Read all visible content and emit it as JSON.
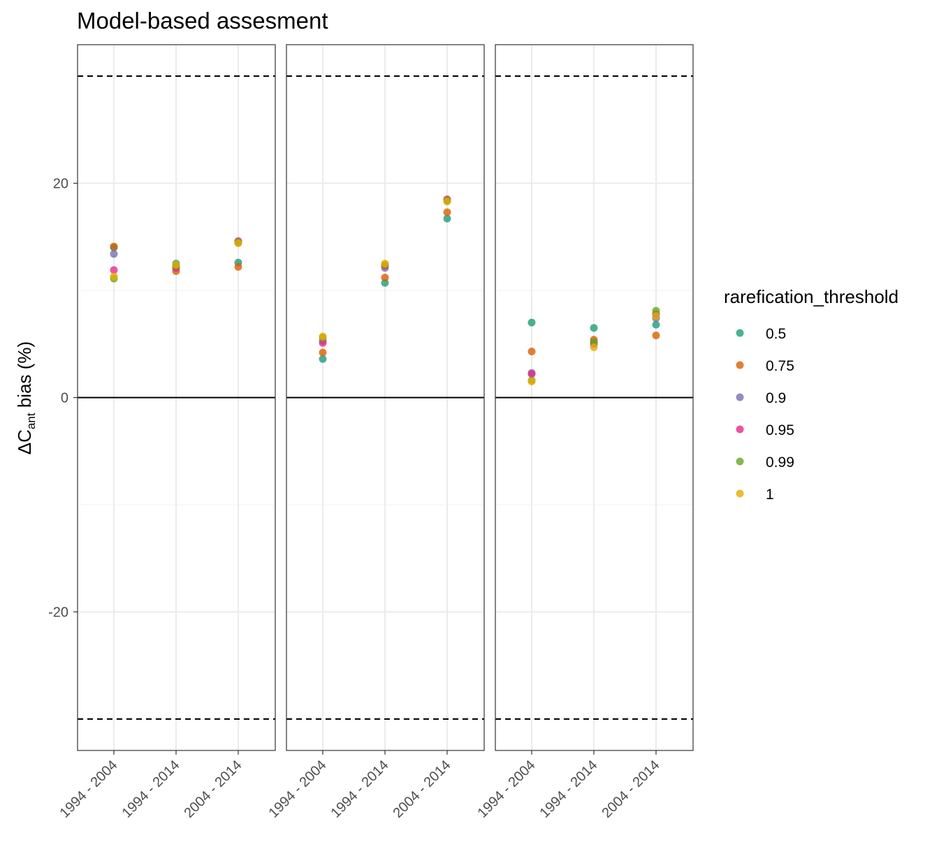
{
  "chart_data": {
    "type": "scatter",
    "title": "Model-based assesment",
    "ylabel": {
      "prefix": "ΔC",
      "subscript": "ant",
      "suffix": " bias (%)"
    },
    "ylim": [
      -33,
      33
    ],
    "yticks": [
      -20,
      0,
      20
    ],
    "categories": [
      "1994 - 2004",
      "1994 - 2014",
      "2004 - 2014"
    ],
    "reference_lines": [
      {
        "y": 0,
        "style": "solid"
      },
      {
        "y": 30,
        "style": "dashed"
      },
      {
        "y": -30,
        "style": "dashed"
      }
    ],
    "grid": true,
    "legend": {
      "title": "rarefication_threshold",
      "placement": "right",
      "entries": [
        {
          "label": "0.5",
          "color": "#1b9e77"
        },
        {
          "label": "0.75",
          "color": "#d95f02"
        },
        {
          "label": "0.9",
          "color": "#7570b3"
        },
        {
          "label": "0.95",
          "color": "#e7298a"
        },
        {
          "label": "0.99",
          "color": "#66a61e"
        },
        {
          "label": "1",
          "color": "#e6ab02"
        }
      ]
    },
    "panels": [
      {
        "series": [
          {
            "name": "0.5",
            "values": [
              14.0,
              12.5,
              12.6
            ]
          },
          {
            "name": "0.75",
            "values": [
              14.1,
              11.8,
              12.2
            ]
          },
          {
            "name": "0.9",
            "values": [
              13.4,
              12.2,
              14.5
            ]
          },
          {
            "name": "0.95",
            "values": [
              11.9,
              12.1,
              14.6
            ]
          },
          {
            "name": "0.99",
            "values": [
              11.1,
              12.3,
              14.5
            ]
          },
          {
            "name": "1",
            "values": [
              11.3,
              12.4,
              14.4
            ]
          }
        ]
      },
      {
        "series": [
          {
            "name": "0.5",
            "values": [
              3.6,
              10.7,
              16.7
            ]
          },
          {
            "name": "0.75",
            "values": [
              4.2,
              11.2,
              17.3
            ]
          },
          {
            "name": "0.9",
            "values": [
              5.3,
              12.1,
              18.4
            ]
          },
          {
            "name": "0.95",
            "values": [
              5.1,
              12.3,
              18.5
            ]
          },
          {
            "name": "0.99",
            "values": [
              5.6,
              12.4,
              18.4
            ]
          },
          {
            "name": "1",
            "values": [
              5.7,
              12.5,
              18.3
            ]
          }
        ]
      },
      {
        "series": [
          {
            "name": "0.5",
            "values": [
              7.0,
              6.5,
              6.8
            ]
          },
          {
            "name": "0.75",
            "values": [
              4.3,
              5.4,
              5.8
            ]
          },
          {
            "name": "0.9",
            "values": [
              2.3,
              5.0,
              7.4
            ]
          },
          {
            "name": "0.95",
            "values": [
              2.2,
              5.1,
              7.8
            ]
          },
          {
            "name": "0.99",
            "values": [
              1.6,
              5.2,
              8.1
            ]
          },
          {
            "name": "1",
            "values": [
              1.5,
              4.7,
              7.6
            ]
          }
        ]
      }
    ]
  }
}
